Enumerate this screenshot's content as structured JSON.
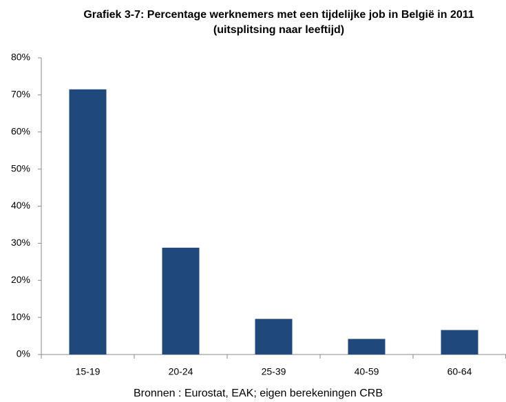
{
  "chart_data": {
    "type": "bar",
    "title": [
      "Grafiek 3-7: Percentage werknemers met een tijdelijke job in België in 2011",
      "(uitsplitsing naar leeftijd)"
    ],
    "categories": [
      "15-19",
      "20-24",
      "25-39",
      "40-59",
      "60-64"
    ],
    "values": [
      71.5,
      28.8,
      9.6,
      4.2,
      6.6
    ],
    "color": "#1f497d",
    "ylim": [
      0,
      80
    ],
    "yticks": [
      {
        "value": 0,
        "label": "0%"
      },
      {
        "value": 10,
        "label": "10%"
      },
      {
        "value": 20,
        "label": "20%"
      },
      {
        "value": 30,
        "label": "30%"
      },
      {
        "value": 40,
        "label": "40%"
      },
      {
        "value": 50,
        "label": "50%"
      },
      {
        "value": 60,
        "label": "60%"
      },
      {
        "value": 70,
        "label": "70%"
      },
      {
        "value": 80,
        "label": "80%"
      }
    ],
    "grid": false,
    "source": "Bronnen : Eurostat, EAK; eigen berekeningen CRB"
  }
}
